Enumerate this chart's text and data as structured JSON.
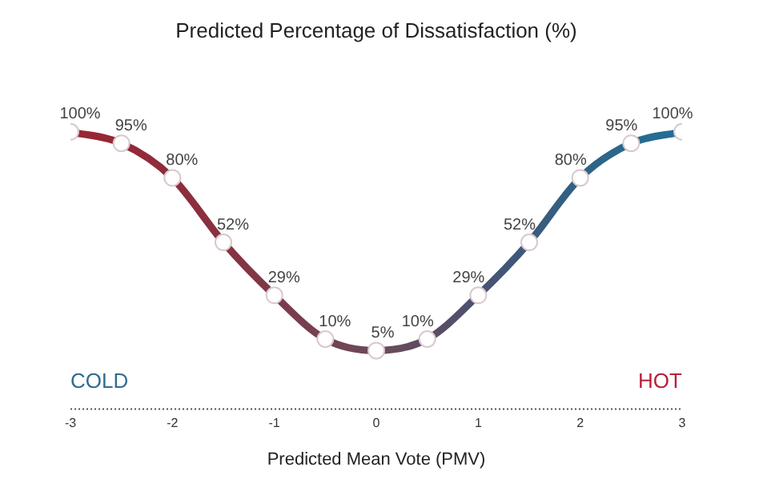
{
  "chart_data": {
    "type": "line",
    "title": "Predicted Percentage of Dissatisfaction (%)",
    "xlabel": "Predicted Mean Vote (PMV)",
    "x": [
      -3,
      -2.5,
      -2,
      -1.5,
      -1,
      -0.5,
      0,
      0.5,
      1,
      1.5,
      2,
      2.5,
      3
    ],
    "series": [
      {
        "colors": [
          "#9a2535",
          "#952838",
          "#8f2c3c",
          "#873241",
          "#7d3a4a",
          "#744252",
          "#6a4a5a",
          "#5e4c62",
          "#4a5270",
          "#3b5a7c",
          "#2f6284",
          "#296a8e",
          "#246e94"
        ],
        "values": [
          100,
          95,
          80,
          52,
          29,
          10,
          5,
          10,
          29,
          52,
          80,
          95,
          100
        ],
        "value_labels": [
          "100%",
          "95%",
          "80%",
          "52%",
          "29%",
          "10%",
          "5%",
          "10%",
          "29%",
          "52%",
          "80%",
          "95%",
          "100%"
        ]
      }
    ],
    "xlim": [
      -3,
      3
    ],
    "xticks": [
      -3,
      -2,
      -1,
      0,
      1,
      2,
      3
    ],
    "annotations": [
      "COLD",
      "HOT"
    ],
    "grid": false,
    "legend": false,
    "marker": "circle",
    "line_style": "solid",
    "tick_labels": "x"
  }
}
